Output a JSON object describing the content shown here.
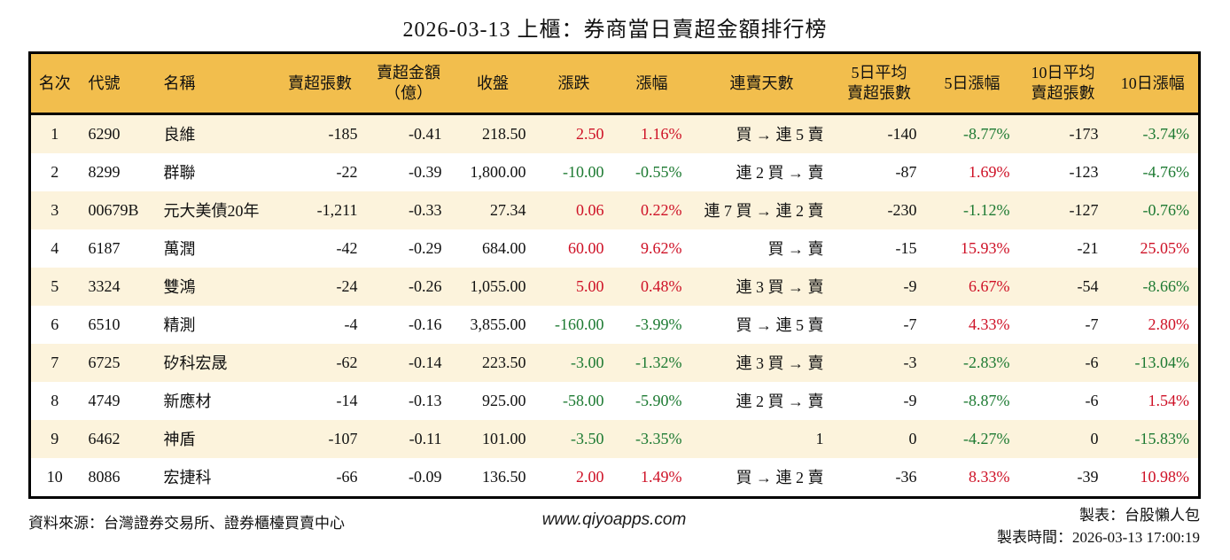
{
  "colors": {
    "up": "#ce1126",
    "down": "#1d7a32",
    "header_bg": "#f2be4d",
    "stripe_bg": "#fcf3dc",
    "border": "#000000"
  },
  "chart_data": {
    "type": "table",
    "title": "2026-03-13 上櫃：券商當日賣超金額排行榜",
    "legend_note": "positive change values shown red (up), negative shown green (down)",
    "columns": [
      {
        "key": "rank",
        "lines": [
          "名次"
        ]
      },
      {
        "key": "code",
        "lines": [
          "代號"
        ]
      },
      {
        "key": "name",
        "lines": [
          "名稱"
        ]
      },
      {
        "key": "sell_volume",
        "lines": [
          "賣超張數"
        ]
      },
      {
        "key": "sell_amount",
        "lines": [
          "賣超金額",
          "（億）"
        ]
      },
      {
        "key": "close",
        "lines": [
          "收盤"
        ]
      },
      {
        "key": "change",
        "lines": [
          "漲跌"
        ]
      },
      {
        "key": "change_pct",
        "lines": [
          "漲幅"
        ]
      },
      {
        "key": "sell_streak",
        "lines": [
          "連賣天數"
        ]
      },
      {
        "key": "avg5_volume",
        "lines": [
          "5日平均",
          "賣超張數"
        ]
      },
      {
        "key": "pct_5d",
        "lines": [
          "5日漲幅"
        ]
      },
      {
        "key": "avg10_volume",
        "lines": [
          "10日平均",
          "賣超張數"
        ]
      },
      {
        "key": "pct_10d",
        "lines": [
          "10日漲幅"
        ]
      }
    ],
    "rows": [
      [
        "1",
        "6290",
        "良維",
        "-185",
        "-0.41",
        "218.50",
        "2.50",
        "1.16%",
        "買 → 連 5 賣",
        "-140",
        "-8.77%",
        "-173",
        "-3.74%"
      ],
      [
        "2",
        "8299",
        "群聯",
        "-22",
        "-0.39",
        "1,800.00",
        "-10.00",
        "-0.55%",
        "連 2 買 → 賣",
        "-87",
        "1.69%",
        "-123",
        "-4.76%"
      ],
      [
        "3",
        "00679B",
        "元大美債20年",
        "-1,211",
        "-0.33",
        "27.34",
        "0.06",
        "0.22%",
        "連 7 買 → 連 2 賣",
        "-230",
        "-1.12%",
        "-127",
        "-0.76%"
      ],
      [
        "4",
        "6187",
        "萬潤",
        "-42",
        "-0.29",
        "684.00",
        "60.00",
        "9.62%",
        "買 → 賣",
        "-15",
        "15.93%",
        "-21",
        "25.05%"
      ],
      [
        "5",
        "3324",
        "雙鴻",
        "-24",
        "-0.26",
        "1,055.00",
        "5.00",
        "0.48%",
        "連 3 買 → 賣",
        "-9",
        "6.67%",
        "-54",
        "-8.66%"
      ],
      [
        "6",
        "6510",
        "精測",
        "-4",
        "-0.16",
        "3,855.00",
        "-160.00",
        "-3.99%",
        "買 → 連 5 賣",
        "-7",
        "4.33%",
        "-7",
        "2.80%"
      ],
      [
        "7",
        "6725",
        "矽科宏晟",
        "-62",
        "-0.14",
        "223.50",
        "-3.00",
        "-1.32%",
        "連 3 買 → 賣",
        "-3",
        "-2.83%",
        "-6",
        "-13.04%"
      ],
      [
        "8",
        "4749",
        "新應材",
        "-14",
        "-0.13",
        "925.00",
        "-58.00",
        "-5.90%",
        "連 2 買 → 賣",
        "-9",
        "-8.87%",
        "-6",
        "1.54%"
      ],
      [
        "9",
        "6462",
        "神盾",
        "-107",
        "-0.11",
        "101.00",
        "-3.50",
        "-3.35%",
        "1",
        "0",
        "-4.27%",
        "0",
        "-15.83%"
      ],
      [
        "10",
        "8086",
        "宏捷科",
        "-66",
        "-0.09",
        "136.50",
        "2.00",
        "1.49%",
        "買 → 連 2 賣",
        "-36",
        "8.33%",
        "-39",
        "10.98%"
      ]
    ]
  },
  "footer": {
    "source": "資料來源：台灣證券交易所、證券櫃檯買賣中心",
    "website": "www.qiyoapps.com",
    "maker": "製表：台股懶人包",
    "generated": "製表時間：2026-03-13 17:00:19"
  }
}
